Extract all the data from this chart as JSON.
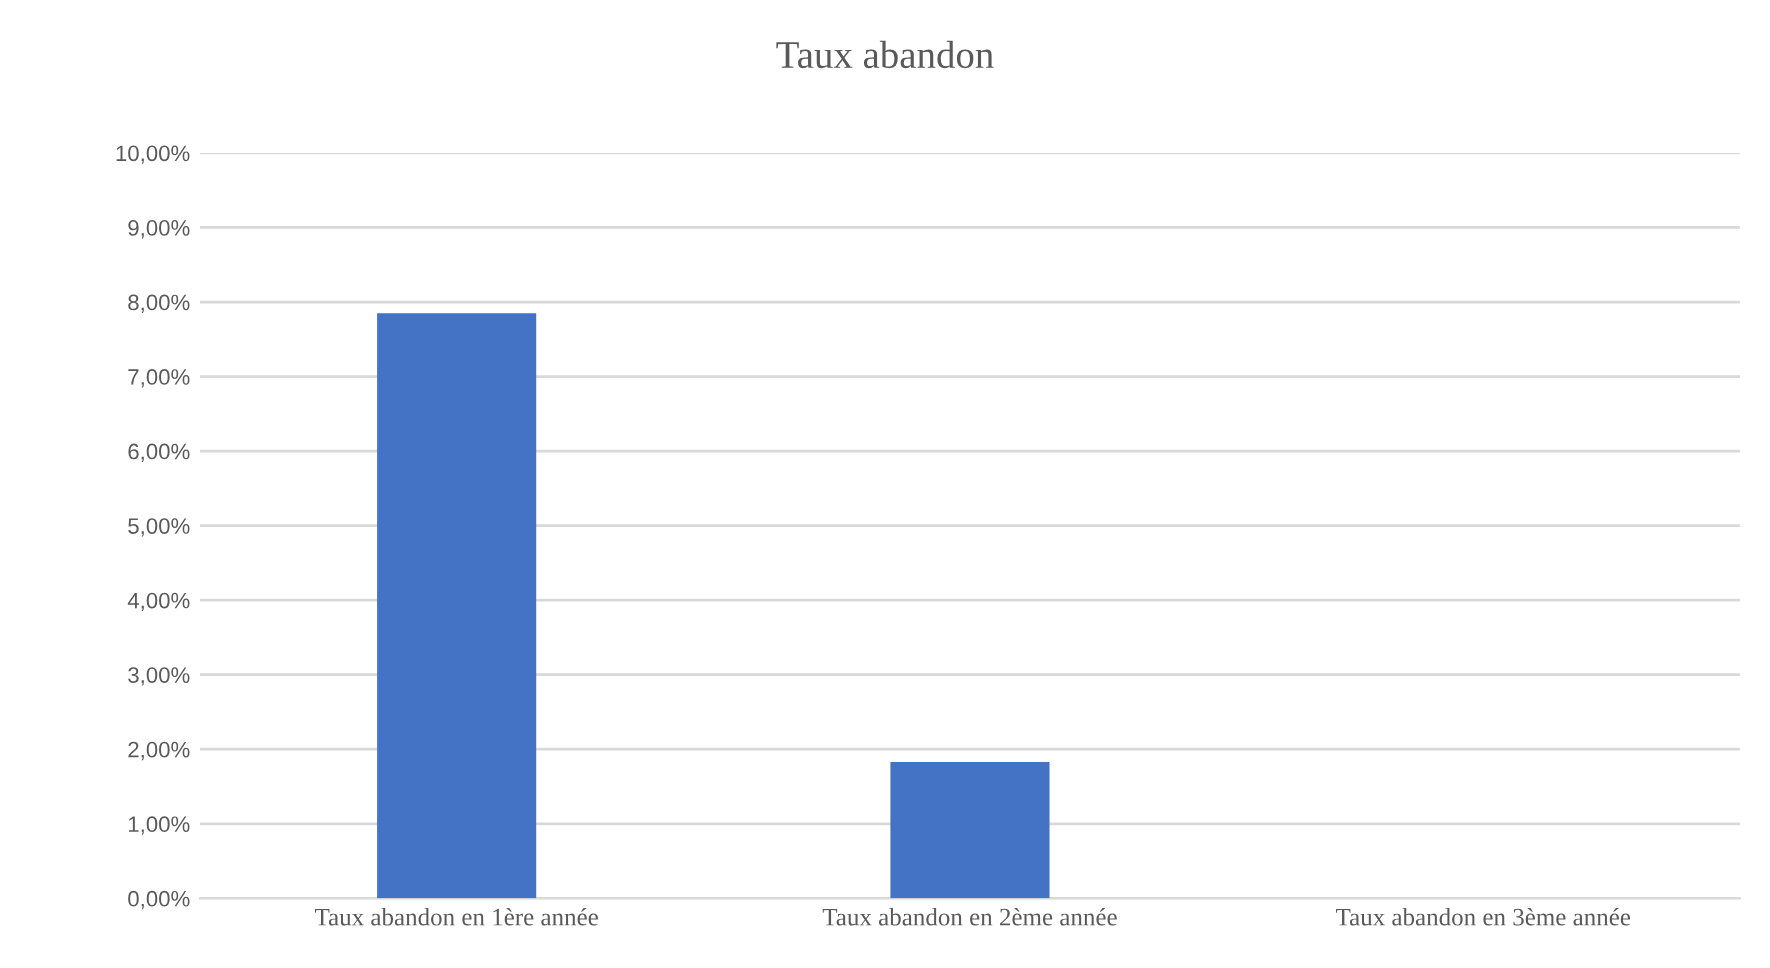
{
  "chart_data": {
    "type": "bar",
    "title": "Taux abandon",
    "categories": [
      "Taux abandon en 1ère année",
      "Taux abandon en 2ème année",
      "Taux abandon en 3ème année"
    ],
    "values": [
      7.85,
      1.83,
      0
    ],
    "color": "#4472c4",
    "ylim": [
      0,
      10
    ],
    "yticks": [
      {
        "value": 0,
        "label": "0,00%"
      },
      {
        "value": 1,
        "label": "1,00%"
      },
      {
        "value": 2,
        "label": "2,00%"
      },
      {
        "value": 3,
        "label": "3,00%"
      },
      {
        "value": 4,
        "label": "4,00%"
      },
      {
        "value": 5,
        "label": "5,00%"
      },
      {
        "value": 6,
        "label": "6,00%"
      },
      {
        "value": 7,
        "label": "7,00%"
      },
      {
        "value": 8,
        "label": "8,00%"
      },
      {
        "value": 9,
        "label": "9,00%"
      },
      {
        "value": 10,
        "label": "10,00%"
      }
    ],
    "grid": "y"
  }
}
